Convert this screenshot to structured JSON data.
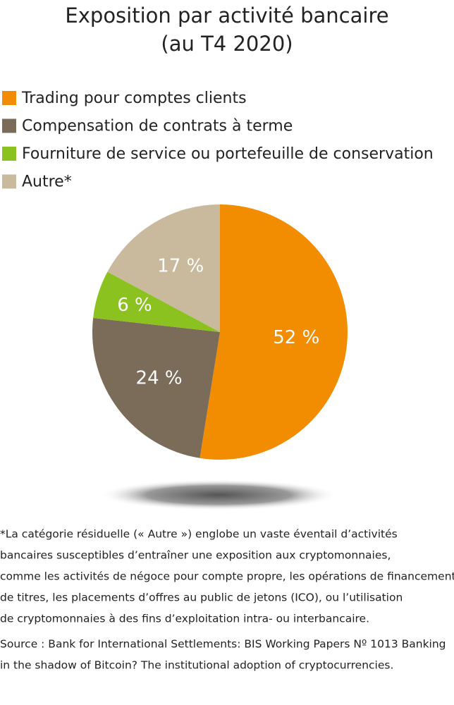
{
  "chart_data": {
    "type": "pie",
    "title": "Exposition par activité bancaire",
    "subtitle": "(au T4 2020)",
    "categories": [
      "Trading pour comptes clients",
      "Compensation de contrats à terme",
      "Fourniture de service ou portefeuille de conservation",
      "Autre*"
    ],
    "values": [
      52,
      24,
      6,
      17
    ],
    "value_labels": [
      "52 %",
      "24 %",
      "6 %",
      "17 %"
    ],
    "colors": [
      "#f28c00",
      "#7b6b59",
      "#8cc21f",
      "#c9b99d"
    ],
    "legend": "top-left",
    "note": [
      "*La catégorie résiduelle (« Autre ») englobe un vaste éventail d’activités",
      "bancaires susceptibles d’entraîner une exposition aux cryptomonnaies,",
      "comme les activités de négoce pour compte propre, les opérations de financement",
      "de titres, les placements d’offres au public de jetons (ICO), ou l’utilisation",
      "de cryptomonnaies à des fins d’exploitation intra- ou interbancaire."
    ],
    "source": [
      "Source : Bank for International Settlements: BIS Working Papers Nº 1013 Banking",
      "in the shadow of Bitcoin? The institutional adoption of cryptocurrencies."
    ]
  }
}
